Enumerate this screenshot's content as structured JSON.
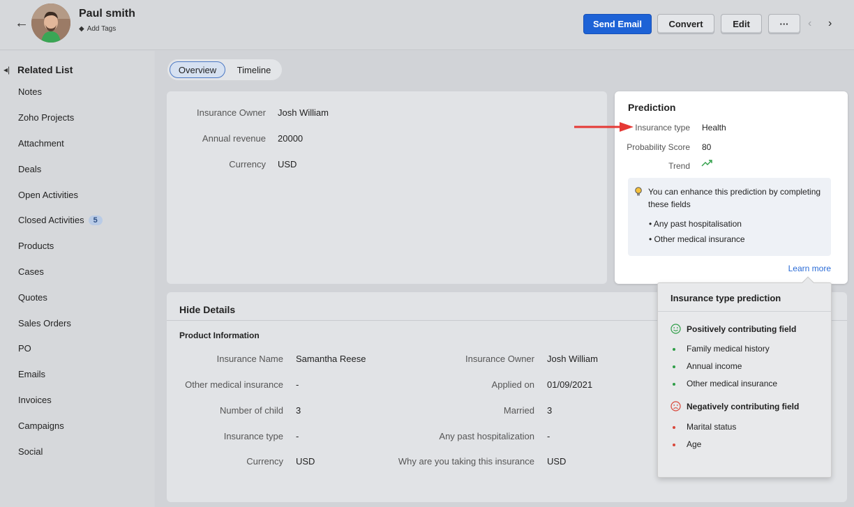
{
  "header": {
    "contact_name": "Paul smith",
    "add_tags": "Add Tags",
    "actions": {
      "send_email": "Send Email",
      "convert": "Convert",
      "edit": "Edit",
      "more": "···"
    }
  },
  "sidebar": {
    "title": "Related List",
    "items": [
      {
        "label": "Notes"
      },
      {
        "label": "Zoho Projects"
      },
      {
        "label": "Attachment"
      },
      {
        "label": "Deals"
      },
      {
        "label": "Open Activities"
      },
      {
        "label": "Closed Activities",
        "count": "5"
      },
      {
        "label": "Products"
      },
      {
        "label": "Cases"
      },
      {
        "label": "Quotes"
      },
      {
        "label": "Sales Orders"
      },
      {
        "label": "PO"
      },
      {
        "label": "Emails"
      },
      {
        "label": "Invoices"
      },
      {
        "label": "Campaigns"
      },
      {
        "label": "Social"
      }
    ]
  },
  "tabs": {
    "overview": "Overview",
    "timeline": "Timeline"
  },
  "overview": {
    "fields": [
      {
        "label": "Insurance Owner",
        "value": "Josh William"
      },
      {
        "label": "Annual revenue",
        "value": "20000"
      },
      {
        "label": "Currency",
        "value": "USD"
      }
    ]
  },
  "details": {
    "title": "Hide Details",
    "section": "Product Information",
    "left_fields": [
      {
        "label": "Insurance Name",
        "value": "Samantha Reese"
      },
      {
        "label": "Other medical insurance",
        "value": "-"
      },
      {
        "label": "Number of child",
        "value": "3"
      },
      {
        "label": "Insurance type",
        "value": "-"
      },
      {
        "label": "Currency",
        "value": "USD"
      }
    ],
    "right_fields": [
      {
        "label": "Insurance Owner",
        "value": "Josh William"
      },
      {
        "label": "Applied on",
        "value": "01/09/2021"
      },
      {
        "label": "Married",
        "value": "3"
      },
      {
        "label": "Any past hospitalization",
        "value": "-"
      },
      {
        "label": "Why are you taking this insurance",
        "value": "USD"
      }
    ]
  },
  "prediction": {
    "title": "Prediction",
    "insurance_type_label": "Insurance type",
    "insurance_type_value": "Health",
    "probability_label": "Probability Score",
    "probability_value": "80",
    "trend_label": "Trend",
    "trend_icon": "trend-up-icon",
    "hint": "You can enhance this prediction by completing these fields",
    "hint_items": [
      "• Any past hospitalisation",
      "• Other medical insurance"
    ],
    "learn_more": "Learn more"
  },
  "popover": {
    "title": "Insurance type prediction",
    "positive_heading": "Positively contributing field",
    "positive_items": [
      "Family medical history",
      "Annual income",
      "Other medical insurance"
    ],
    "negative_heading": "Negatively contributing field",
    "negative_items": [
      "Marital status",
      "Age"
    ]
  },
  "colors": {
    "primary": "#1d62d6",
    "link": "#2a6bd6",
    "positive": "#2e9e47",
    "negative": "#d9473a",
    "annotation_arrow": "#e53935"
  }
}
